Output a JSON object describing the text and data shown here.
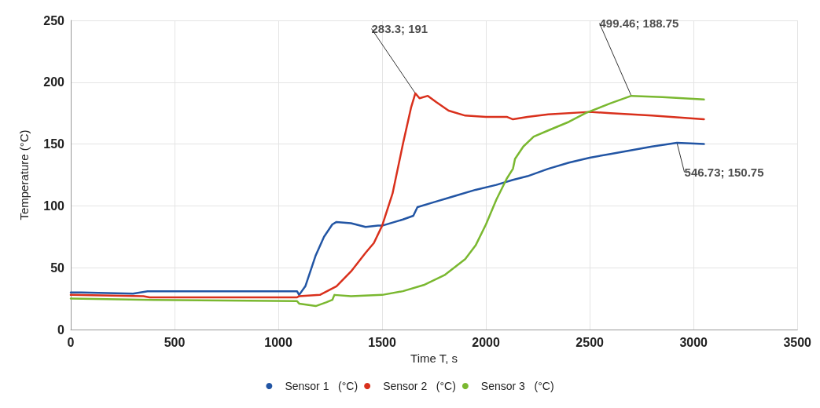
{
  "chart_data": {
    "type": "line",
    "xlabel": "Time T, s",
    "ylabel": "Temperature (°C)",
    "xlim": [
      0,
      3500
    ],
    "xticks": [
      0,
      500,
      1000,
      1500,
      2000,
      2500,
      3000,
      3500
    ],
    "ylim": [
      0,
      250
    ],
    "yticks": [
      0,
      50,
      100,
      150,
      200,
      250
    ],
    "grid": true,
    "legend": "bottom",
    "marker": "none",
    "line_style": "solid",
    "series": [
      {
        "name": "Sensor 1   (°C)",
        "color": "#2255a4",
        "x": [
          0,
          50,
          300,
          370,
          1090,
          1100,
          1130,
          1180,
          1220,
          1260,
          1280,
          1350,
          1420,
          1480,
          1500,
          1600,
          1650,
          1670,
          1750,
          1850,
          1950,
          2050,
          2130,
          2200,
          2300,
          2400,
          2500,
          2600,
          2700,
          2800,
          2920,
          3050
        ],
        "values": [
          30,
          30,
          29,
          31,
          31,
          28,
          35,
          60,
          75,
          85,
          87,
          86,
          83,
          84,
          84,
          89,
          92,
          99,
          103,
          108,
          113,
          117,
          121,
          124,
          130,
          135,
          139,
          142,
          145,
          148,
          151,
          150
        ]
      },
      {
        "name": "Sensor 2   (°C)",
        "color": "#d9301c",
        "x": [
          0,
          350,
          380,
          1090,
          1100,
          1200,
          1280,
          1350,
          1420,
          1460,
          1500,
          1550,
          1600,
          1640,
          1660,
          1680,
          1720,
          1760,
          1820,
          1900,
          2000,
          2100,
          2130,
          2200,
          2300,
          2500,
          2600,
          2800,
          3050
        ],
        "values": [
          28,
          27,
          26,
          26,
          27,
          28,
          35,
          47,
          62,
          70,
          84,
          110,
          150,
          180,
          191,
          187,
          189,
          184,
          177,
          173,
          172,
          172,
          170,
          172,
          174,
          176,
          175,
          173,
          170
        ]
      },
      {
        "name": "Sensor 3   (°C)",
        "color": "#7ab830",
        "x": [
          0,
          400,
          1090,
          1100,
          1180,
          1230,
          1260,
          1270,
          1350,
          1500,
          1600,
          1700,
          1800,
          1900,
          1950,
          2000,
          2050,
          2100,
          2130,
          2140,
          2180,
          2230,
          2300,
          2400,
          2480,
          2600,
          2700,
          2850,
          3050
        ],
        "values": [
          25,
          24,
          23,
          21,
          19,
          22,
          24,
          28,
          27,
          28,
          31,
          36,
          44,
          57,
          68,
          85,
          105,
          122,
          130,
          138,
          148,
          156,
          161,
          168,
          175,
          183,
          189,
          188,
          186
        ]
      }
    ],
    "annotations": [
      {
        "text": "283.3; 191",
        "x": 1660,
        "y": 191
      },
      {
        "text": "499.46; 188.75",
        "x": 2700,
        "y": 189
      },
      {
        "text": "546.73; 150.75",
        "x": 2920,
        "y": 151
      }
    ]
  }
}
